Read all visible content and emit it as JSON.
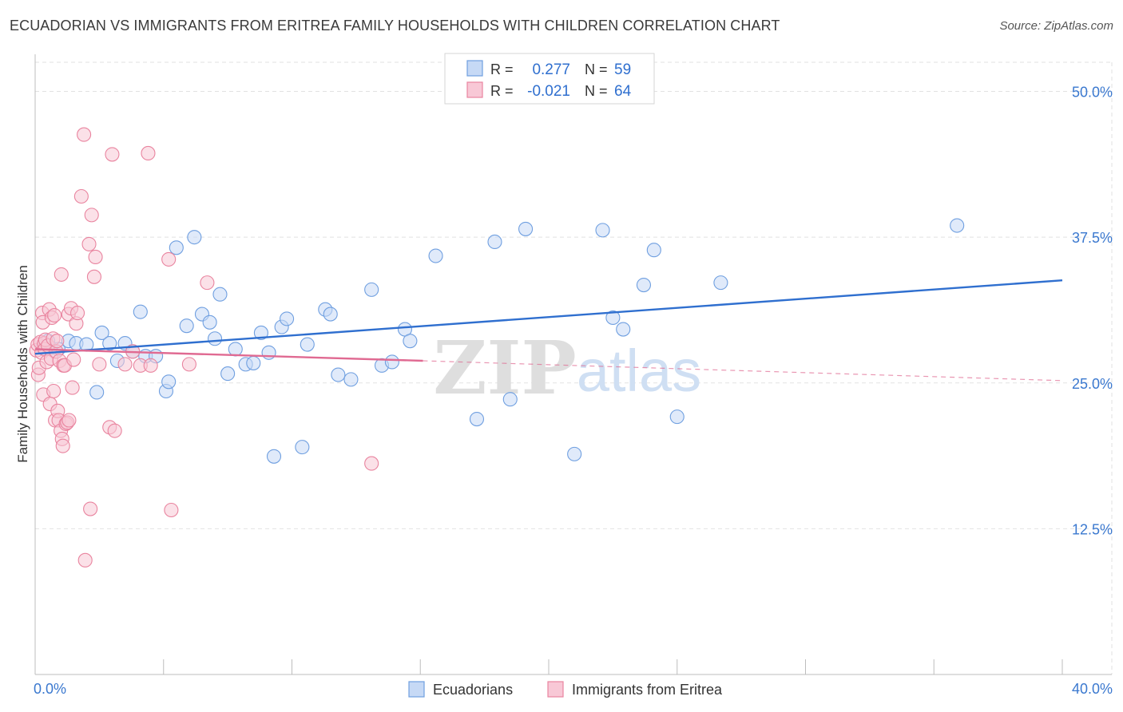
{
  "title": "ECUADORIAN VS IMMIGRANTS FROM ERITREA FAMILY HOUSEHOLDS WITH CHILDREN CORRELATION CHART",
  "source": "Source: ZipAtlas.com",
  "watermark": {
    "zip": "ZIP",
    "atlas": "atlas"
  },
  "colors": {
    "blue": "#6f9fe0",
    "blue_fill": "#c6d9f5",
    "blue_line": "#2f6fcf",
    "pink": "#e9849f",
    "pink_fill": "#f8c8d6",
    "pink_line": "#e06a92",
    "grid": "#e2e2e2",
    "tick_label": "#3a78cf"
  },
  "legend_box": {
    "rows": [
      {
        "r_label": "R =",
        "r_value": "0.277",
        "n_label": "N =",
        "n_value": "59"
      },
      {
        "r_label": "R =",
        "r_value": "-0.021",
        "n_label": "N =",
        "n_value": "64"
      }
    ]
  },
  "chart_data": {
    "type": "scatter",
    "title": "ECUADORIAN VS IMMIGRANTS FROM ERITREA FAMILY HOUSEHOLDS WITH CHILDREN CORRELATION CHART",
    "xlabel": "",
    "ylabel": "Family Households with Children",
    "xlim": [
      0,
      40
    ],
    "ylim": [
      0,
      52.5
    ],
    "x_tick_labels": [
      "0.0%",
      "40.0%"
    ],
    "y_ticks": [
      12.5,
      25.0,
      37.5,
      50.0
    ],
    "y_tick_labels": [
      "12.5%",
      "25.0%",
      "37.5%",
      "50.0%"
    ],
    "grid": true,
    "legend_position": "bottom-center",
    "series": [
      {
        "name": "Ecuadorians",
        "color": "#6f9fe0",
        "trend": {
          "x": [
            0,
            40
          ],
          "y": [
            27.5,
            33.8
          ],
          "style": "solid"
        },
        "points": [
          [
            0.3,
            28.1
          ],
          [
            0.5,
            28.6
          ],
          [
            0.6,
            28.0
          ],
          [
            0.9,
            27.9
          ],
          [
            1.3,
            28.6
          ],
          [
            1.6,
            28.4
          ],
          [
            2.0,
            28.3
          ],
          [
            2.4,
            24.2
          ],
          [
            2.6,
            29.3
          ],
          [
            2.9,
            28.4
          ],
          [
            3.2,
            26.9
          ],
          [
            3.5,
            28.4
          ],
          [
            3.8,
            27.7
          ],
          [
            4.1,
            31.1
          ],
          [
            4.3,
            27.3
          ],
          [
            4.7,
            27.3
          ],
          [
            5.1,
            24.3
          ],
          [
            5.2,
            25.1
          ],
          [
            5.5,
            36.6
          ],
          [
            5.9,
            29.9
          ],
          [
            6.2,
            37.5
          ],
          [
            6.5,
            30.9
          ],
          [
            6.8,
            30.2
          ],
          [
            7.0,
            28.8
          ],
          [
            7.2,
            32.6
          ],
          [
            7.5,
            25.8
          ],
          [
            7.8,
            27.9
          ],
          [
            8.2,
            26.6
          ],
          [
            8.5,
            26.7
          ],
          [
            8.8,
            29.3
          ],
          [
            9.1,
            27.6
          ],
          [
            9.3,
            18.7
          ],
          [
            9.6,
            29.8
          ],
          [
            9.8,
            30.5
          ],
          [
            10.4,
            19.5
          ],
          [
            10.6,
            28.3
          ],
          [
            11.3,
            31.3
          ],
          [
            11.5,
            30.9
          ],
          [
            11.8,
            25.7
          ],
          [
            12.3,
            25.3
          ],
          [
            13.1,
            33.0
          ],
          [
            13.5,
            26.5
          ],
          [
            13.9,
            26.8
          ],
          [
            14.4,
            29.6
          ],
          [
            14.6,
            28.6
          ],
          [
            15.6,
            35.9
          ],
          [
            17.2,
            21.9
          ],
          [
            17.9,
            37.1
          ],
          [
            18.5,
            23.6
          ],
          [
            19.1,
            38.2
          ],
          [
            21.0,
            18.9
          ],
          [
            22.1,
            38.1
          ],
          [
            22.5,
            30.6
          ],
          [
            22.9,
            29.6
          ],
          [
            23.7,
            33.4
          ],
          [
            24.1,
            36.4
          ],
          [
            25.0,
            22.1
          ],
          [
            26.7,
            33.6
          ],
          [
            35.9,
            38.5
          ]
        ]
      },
      {
        "name": "Immigrants from Eritrea",
        "color": "#e9849f",
        "trend": {
          "x": [
            0,
            15.1
          ],
          "y": [
            27.9,
            26.9
          ],
          "style": "solid",
          "extended": {
            "x": [
              15.1,
              40
            ],
            "y": [
              26.9,
              25.2
            ],
            "style": "dashed"
          }
        },
        "points": [
          [
            0.05,
            27.8
          ],
          [
            0.1,
            28.3
          ],
          [
            0.12,
            25.7
          ],
          [
            0.15,
            26.3
          ],
          [
            0.2,
            28.5
          ],
          [
            0.25,
            27.6
          ],
          [
            0.28,
            31.0
          ],
          [
            0.3,
            30.2
          ],
          [
            0.32,
            24.0
          ],
          [
            0.35,
            28.4
          ],
          [
            0.38,
            27.9
          ],
          [
            0.4,
            28.7
          ],
          [
            0.45,
            26.8
          ],
          [
            0.5,
            28.2
          ],
          [
            0.55,
            31.3
          ],
          [
            0.58,
            23.2
          ],
          [
            0.62,
            27.1
          ],
          [
            0.65,
            30.6
          ],
          [
            0.7,
            28.8
          ],
          [
            0.72,
            24.3
          ],
          [
            0.75,
            30.8
          ],
          [
            0.78,
            21.8
          ],
          [
            0.82,
            27.7
          ],
          [
            0.85,
            28.6
          ],
          [
            0.88,
            22.6
          ],
          [
            0.92,
            21.8
          ],
          [
            0.95,
            26.9
          ],
          [
            1.0,
            20.9
          ],
          [
            1.02,
            34.3
          ],
          [
            1.05,
            20.2
          ],
          [
            1.08,
            19.6
          ],
          [
            1.1,
            26.5
          ],
          [
            1.15,
            26.5
          ],
          [
            1.2,
            21.5
          ],
          [
            1.25,
            21.6
          ],
          [
            1.3,
            30.9
          ],
          [
            1.32,
            21.8
          ],
          [
            1.4,
            31.4
          ],
          [
            1.45,
            24.6
          ],
          [
            1.5,
            27.0
          ],
          [
            1.6,
            30.1
          ],
          [
            1.65,
            31.0
          ],
          [
            1.8,
            41.0
          ],
          [
            1.9,
            46.3
          ],
          [
            1.95,
            9.8
          ],
          [
            2.1,
            36.9
          ],
          [
            2.15,
            14.2
          ],
          [
            2.2,
            39.4
          ],
          [
            2.3,
            34.1
          ],
          [
            2.35,
            35.8
          ],
          [
            2.5,
            26.6
          ],
          [
            2.9,
            21.2
          ],
          [
            3.0,
            44.6
          ],
          [
            3.1,
            20.9
          ],
          [
            3.5,
            26.6
          ],
          [
            3.8,
            27.7
          ],
          [
            4.1,
            26.5
          ],
          [
            4.4,
            44.7
          ],
          [
            4.5,
            26.5
          ],
          [
            5.2,
            35.6
          ],
          [
            5.3,
            14.1
          ],
          [
            6.0,
            26.6
          ],
          [
            6.7,
            33.6
          ],
          [
            13.1,
            18.1
          ]
        ]
      }
    ]
  }
}
